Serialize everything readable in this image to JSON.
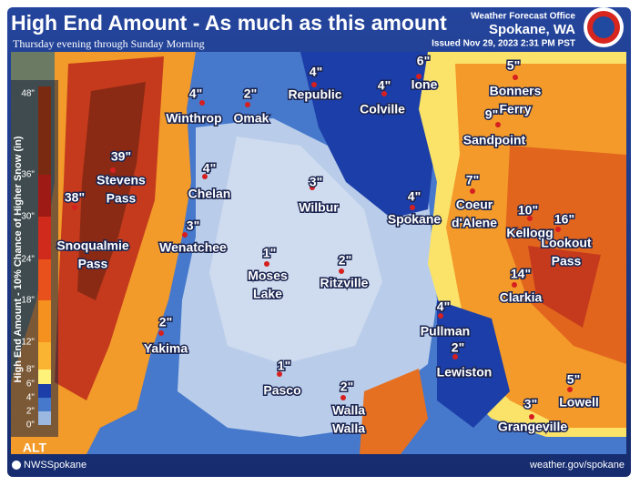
{
  "header": {
    "title": "High End Amount - As much as this amount",
    "subtitle": "Thursday evening through Sunday Morning",
    "office": "Weather Forecast Office",
    "location": "Spokane, WA",
    "issued": "Issued Nov 29, 2023 2:31 PM PST"
  },
  "legend": {
    "title": "High End Amount - 10% Chance of Higher Snow (in)",
    "ticks": [
      "48\"",
      "36\"",
      "30\"",
      "24\"",
      "18\"",
      "12\"",
      "8\"",
      "6\"",
      "4\"",
      "2\"",
      "0\""
    ]
  },
  "map_label": "ALT",
  "footer": {
    "social": "NWSSpokane",
    "url": "weather.gov/spokane"
  },
  "places": [
    {
      "name": [
        "Winthrop"
      ],
      "amount": "4\""
    },
    {
      "name": [
        "Omak"
      ],
      "amount": "2\""
    },
    {
      "name": [
        "Republic"
      ],
      "amount": "4\""
    },
    {
      "name": [
        "Colville"
      ],
      "amount": "4\""
    },
    {
      "name": [
        "Ione"
      ],
      "amount": "6\""
    },
    {
      "name": [
        "Bonners",
        "Ferry"
      ],
      "amount": "5\""
    },
    {
      "name": [
        "Sandpoint"
      ],
      "amount": "9\""
    },
    {
      "name": [
        "Stevens",
        "Pass"
      ],
      "amount": "39\""
    },
    {
      "name": [
        "Snoqualmie",
        "Pass"
      ],
      "amount": "38\""
    },
    {
      "name": [
        "Chelan"
      ],
      "amount": "4\""
    },
    {
      "name": [
        "Wilbur"
      ],
      "amount": "3\""
    },
    {
      "name": [
        "Spokane"
      ],
      "amount": "4\""
    },
    {
      "name": [
        "Coeur",
        "d'Alene"
      ],
      "amount": "7\""
    },
    {
      "name": [
        "Kellogg"
      ],
      "amount": "10\""
    },
    {
      "name": [
        "Lookout",
        "Pass"
      ],
      "amount": "16\""
    },
    {
      "name": [
        "Wenatchee"
      ],
      "amount": "3\""
    },
    {
      "name": [
        "Moses",
        "Lake"
      ],
      "amount": "1\""
    },
    {
      "name": [
        "Ritzville"
      ],
      "amount": "2\""
    },
    {
      "name": [
        "Clarkia"
      ],
      "amount": "14\""
    },
    {
      "name": [
        "Pullman"
      ],
      "amount": "4\""
    },
    {
      "name": [
        "Yakima"
      ],
      "amount": "2\""
    },
    {
      "name": [
        "Lewiston"
      ],
      "amount": "2\""
    },
    {
      "name": [
        "Pasco"
      ],
      "amount": "1\""
    },
    {
      "name": [
        "Walla",
        "Walla"
      ],
      "amount": "2\""
    },
    {
      "name": [
        "Lowell"
      ],
      "amount": "5\""
    },
    {
      "name": [
        "Grangeville"
      ],
      "amount": "3\""
    }
  ]
}
